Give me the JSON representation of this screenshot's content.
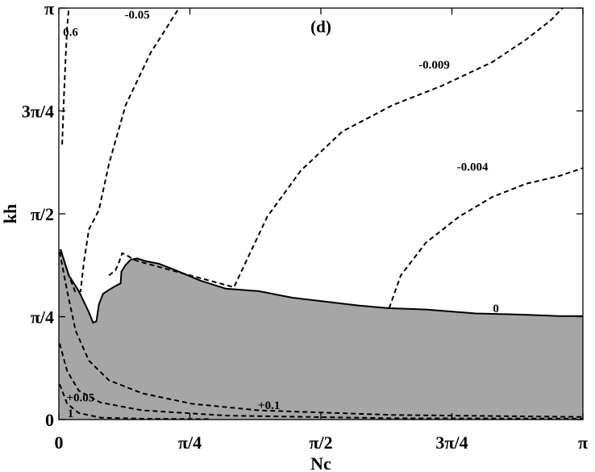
{
  "chart_data": {
    "type": "contour",
    "panel_label": "(d)",
    "xlabel": "Nc",
    "ylabel": "kh",
    "xlim": [
      0,
      3.14159
    ],
    "ylim": [
      0,
      3.14159
    ],
    "x_ticks": [
      {
        "value": 0,
        "label": "0"
      },
      {
        "value": 0.7854,
        "label": "π/4"
      },
      {
        "value": 1.5708,
        "label": "π/2"
      },
      {
        "value": 2.3562,
        "label": "3π/4"
      },
      {
        "value": 3.14159,
        "label": "π"
      }
    ],
    "y_ticks": [
      {
        "value": 0,
        "label": "0"
      },
      {
        "value": 0.7854,
        "label": "π/4"
      },
      {
        "value": 1.5708,
        "label": "π/2"
      },
      {
        "value": 2.3562,
        "label": "3π/4"
      },
      {
        "value": 3.14159,
        "label": "π"
      }
    ],
    "colors": {
      "shaded_region": "#a6a6a6",
      "contour": "#000000"
    },
    "shaded_region": {
      "description_level": "0",
      "boundary": [
        [
          0.01,
          1.3
        ],
        [
          0.06,
          1.1
        ],
        [
          0.12,
          0.98
        ],
        [
          0.18,
          0.82
        ],
        [
          0.205,
          0.74
        ],
        [
          0.225,
          0.75
        ],
        [
          0.24,
          0.88
        ],
        [
          0.265,
          0.96
        ],
        [
          0.3,
          0.99
        ],
        [
          0.34,
          1.02
        ],
        [
          0.37,
          1.04
        ],
        [
          0.375,
          1.13
        ],
        [
          0.4,
          1.18
        ],
        [
          0.43,
          1.22
        ],
        [
          0.47,
          1.23
        ],
        [
          0.52,
          1.21
        ],
        [
          0.6,
          1.19
        ],
        [
          0.7,
          1.14
        ],
        [
          0.85,
          1.06
        ],
        [
          1.0,
          1.0
        ],
        [
          1.2,
          0.98
        ],
        [
          1.4,
          0.93
        ],
        [
          1.6,
          0.9
        ],
        [
          1.8,
          0.87
        ],
        [
          1.98,
          0.85
        ],
        [
          2.2,
          0.84
        ],
        [
          2.5,
          0.81
        ],
        [
          2.8,
          0.8
        ],
        [
          3.0,
          0.79
        ],
        [
          3.14159,
          0.79
        ]
      ]
    },
    "contours": [
      {
        "level": "0.6",
        "label": "0.6",
        "label_at": [
          0.07,
          2.93
        ],
        "points": [
          [
            0.02,
            2.1
          ],
          [
            0.03,
            2.45
          ],
          [
            0.04,
            2.75
          ],
          [
            0.05,
            3.0
          ],
          [
            0.06,
            3.14159
          ]
        ]
      },
      {
        "level": "-0.05",
        "label": "-0.05",
        "label_at": [
          0.47,
          3.06
        ],
        "points": [
          [
            0.01,
            1.3
          ],
          [
            0.06,
            1.1
          ],
          [
            0.1,
            0.97
          ],
          [
            0.13,
            0.98
          ],
          [
            0.15,
            1.2
          ],
          [
            0.18,
            1.45
          ],
          [
            0.24,
            1.6
          ],
          [
            0.3,
            1.95
          ],
          [
            0.4,
            2.4
          ],
          [
            0.55,
            2.8
          ],
          [
            0.65,
            3.0
          ],
          [
            0.72,
            3.14159
          ]
        ]
      },
      {
        "level": "-0.009",
        "label": "-0.009",
        "label_at": [
          2.25,
          2.68
        ],
        "points": [
          [
            0.3,
            1.1
          ],
          [
            0.34,
            1.14
          ],
          [
            0.36,
            1.2
          ],
          [
            0.38,
            1.27
          ],
          [
            0.4,
            1.26
          ],
          [
            0.45,
            1.22
          ],
          [
            0.5,
            1.2
          ],
          [
            1.05,
            1.01
          ],
          [
            1.12,
            1.2
          ],
          [
            1.25,
            1.55
          ],
          [
            1.45,
            1.9
          ],
          [
            1.7,
            2.2
          ],
          [
            2.0,
            2.4
          ],
          [
            2.3,
            2.55
          ],
          [
            2.6,
            2.73
          ],
          [
            2.8,
            2.9
          ],
          [
            2.95,
            3.05
          ],
          [
            3.02,
            3.14159
          ]
        ]
      },
      {
        "level": "-0.004",
        "label": "-0.004",
        "label_at": [
          2.48,
          1.9
        ],
        "points": [
          [
            1.98,
            0.85
          ],
          [
            2.05,
            1.1
          ],
          [
            2.2,
            1.35
          ],
          [
            2.4,
            1.55
          ],
          [
            2.6,
            1.7
          ],
          [
            2.8,
            1.8
          ],
          [
            3.0,
            1.86
          ],
          [
            3.14159,
            1.92
          ]
        ]
      },
      {
        "level": "+0.05",
        "label": "+0.05",
        "label_at": [
          0.13,
          0.14
        ],
        "points": [
          [
            0.005,
            0.58
          ],
          [
            0.05,
            0.37
          ],
          [
            0.12,
            0.22
          ],
          [
            0.25,
            0.13
          ],
          [
            0.5,
            0.07
          ],
          [
            1.0,
            0.03
          ],
          [
            2.0,
            0.01
          ],
          [
            3.14159,
            0.007
          ]
        ]
      },
      {
        "level": "+0.1",
        "label": "+0.1",
        "label_at": [
          1.26,
          0.08
        ],
        "points": [
          [
            0.005,
            1.28
          ],
          [
            0.05,
            0.98
          ],
          [
            0.1,
            0.68
          ],
          [
            0.18,
            0.45
          ],
          [
            0.3,
            0.3
          ],
          [
            0.5,
            0.2
          ],
          [
            0.8,
            0.12
          ],
          [
            1.2,
            0.07
          ],
          [
            2.0,
            0.035
          ],
          [
            3.14159,
            0.02
          ]
        ]
      },
      {
        "level": "1",
        "label": "1",
        "label_at": [
          0.07,
          0.02
        ],
        "points": [
          [
            0.005,
            0.27
          ],
          [
            0.05,
            0.12
          ],
          [
            0.12,
            0.05
          ],
          [
            0.25,
            0.015
          ],
          [
            0.5,
            0.006
          ],
          [
            0.9,
            0.004
          ]
        ]
      }
    ],
    "zero_contour_label": {
      "label": "0",
      "label_at": [
        2.62,
        0.82
      ]
    }
  }
}
